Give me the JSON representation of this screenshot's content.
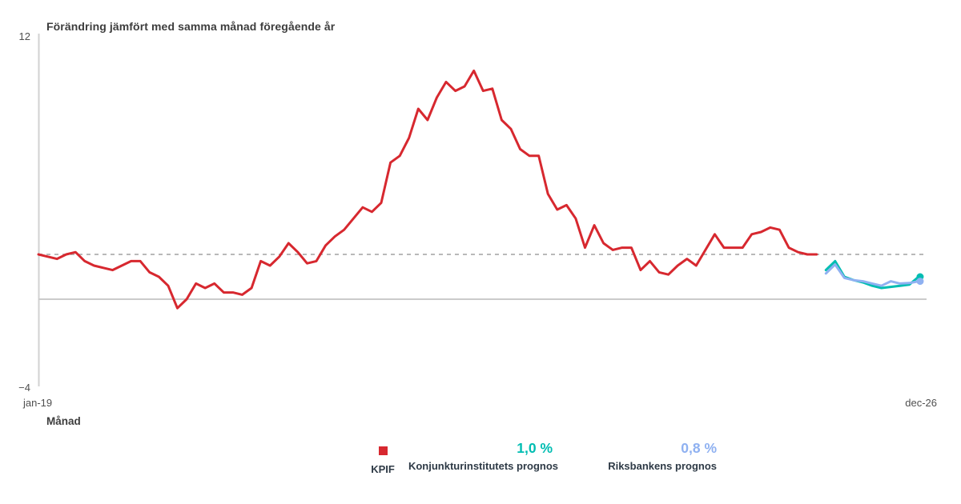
{
  "title": "Förändring jämfört med samma månad föregående år",
  "labels": {
    "y_max": "12",
    "y_min": "−4",
    "x_first": "jan-19",
    "x_last": "dec-26",
    "x_axis_title": "Månad"
  },
  "legend": {
    "kpif_label": "KPIF",
    "ki_value": "1,0 %",
    "ki_label": "Konjunkturinstitutets prognos",
    "rb_value": "0,8 %",
    "rb_label": "Riksbankens prognos"
  },
  "colors": {
    "kpif": "#d7282f",
    "ki_prognos": "#00bdb2",
    "rb_prognos": "#8fb1f1",
    "target_dashed": "#b9b9b9",
    "zero_line": "#cbcbcb",
    "axis": "#d2d2d2"
  },
  "chart_data": {
    "type": "line",
    "title": "Förändring jämfört med samma månad föregående år",
    "xlabel": "Månad",
    "ylabel": "Förändring jämfört med samma månad föregående år (%)",
    "ylim": [
      -4,
      12
    ],
    "y_ticks_shown": [
      12,
      -4
    ],
    "x_range": [
      "jan-19",
      "dec-26"
    ],
    "months_total": 96,
    "grid": false,
    "legend_position": "bottom",
    "reference_lines": [
      {
        "name": "inflation-target",
        "value": 2,
        "style": "dashed"
      },
      {
        "name": "zero",
        "value": 0,
        "style": "solid"
      }
    ],
    "series": [
      {
        "name": "KPIF",
        "color": "#d7282f",
        "start_month": "jan-19",
        "start_index": 0,
        "end_dot": false,
        "values": [
          2.0,
          1.9,
          1.8,
          2.0,
          2.1,
          1.7,
          1.5,
          1.4,
          1.3,
          1.5,
          1.7,
          1.7,
          1.2,
          1.0,
          0.6,
          -0.4,
          0.0,
          0.7,
          0.5,
          0.7,
          0.3,
          0.3,
          0.2,
          0.5,
          1.7,
          1.5,
          1.9,
          2.5,
          2.1,
          1.6,
          1.7,
          2.4,
          2.8,
          3.1,
          3.6,
          4.1,
          3.9,
          4.3,
          6.1,
          6.4,
          7.2,
          8.5,
          8.0,
          9.0,
          9.7,
          9.3,
          9.5,
          10.2,
          9.3,
          9.4,
          8.0,
          7.6,
          6.7,
          6.4,
          6.4,
          4.7,
          4.0,
          4.2,
          3.6,
          2.3,
          3.3,
          2.5,
          2.2,
          2.3,
          2.3,
          1.3,
          1.7,
          1.2,
          1.1,
          1.5,
          1.8,
          1.5,
          2.2,
          2.9,
          2.3,
          2.3,
          2.3,
          2.9,
          3.0,
          3.2,
          3.1,
          2.3,
          2.1,
          2.0,
          2.0
        ]
      },
      {
        "name": "Konjunkturinstitutets prognos",
        "color": "#00bdb2",
        "start_month": "feb-26",
        "start_index": 85,
        "end_dot": true,
        "end_value": 1.0,
        "values": [
          1.3,
          1.7,
          1.0,
          0.85,
          0.75,
          0.6,
          0.5,
          0.55,
          0.6,
          0.65,
          1.0
        ]
      },
      {
        "name": "Riksbankens prognos",
        "color": "#8fb1f1",
        "start_month": "feb-26",
        "start_index": 85,
        "end_dot": true,
        "end_value": 0.8,
        "values": [
          1.15,
          1.55,
          0.95,
          0.85,
          0.8,
          0.7,
          0.6,
          0.8,
          0.7,
          0.72,
          0.8
        ]
      }
    ]
  }
}
